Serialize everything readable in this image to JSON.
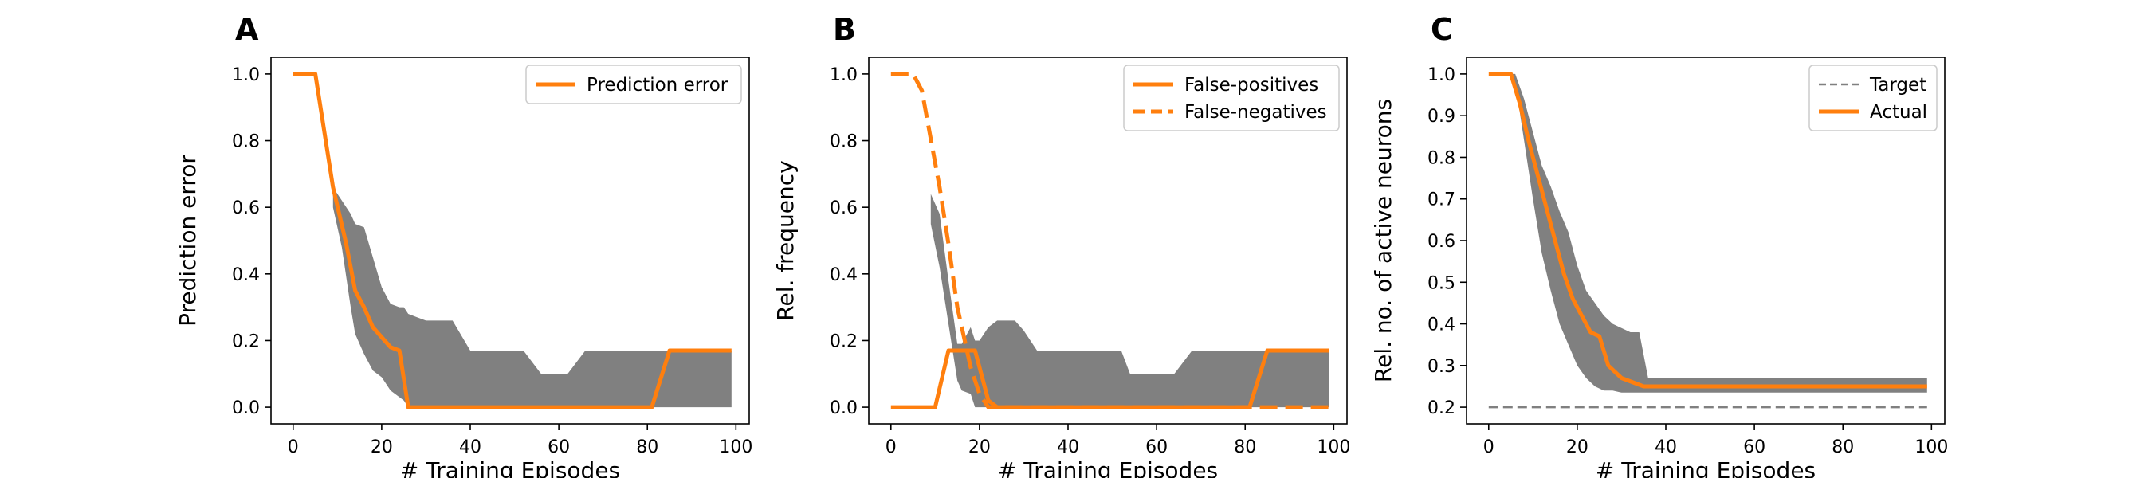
{
  "colors": {
    "line": "#ff7f0e",
    "band": "#808080",
    "target": "#808080",
    "axis": "#000000"
  },
  "chart_data": [
    {
      "panel": "A",
      "type": "line",
      "xlabel": "# Training Episodes",
      "ylabel": "Prediction error",
      "xlim": [
        -5,
        103
      ],
      "ylim": [
        -0.05,
        1.05
      ],
      "xticks": [
        0,
        20,
        40,
        60,
        80,
        100
      ],
      "xtick_labels": [
        "0",
        "20",
        "40",
        "60",
        "80",
        "100"
      ],
      "yticks": [
        0.0,
        0.2,
        0.4,
        0.6,
        0.8,
        1.0
      ],
      "ytick_labels": [
        "0.0",
        "0.2",
        "0.4",
        "0.6",
        "0.8",
        "1.0"
      ],
      "legend_position": "top-right",
      "band": {
        "x": [
          9,
          11,
          13,
          14,
          16,
          18,
          20,
          22,
          24,
          25,
          26,
          28,
          30,
          32,
          34,
          36,
          40,
          44,
          48,
          52,
          56,
          60,
          62,
          66,
          70,
          80,
          84,
          90,
          99
        ],
        "upper": [
          0.66,
          0.62,
          0.58,
          0.55,
          0.54,
          0.45,
          0.36,
          0.31,
          0.3,
          0.3,
          0.28,
          0.27,
          0.26,
          0.26,
          0.26,
          0.26,
          0.17,
          0.17,
          0.17,
          0.17,
          0.1,
          0.1,
          0.1,
          0.17,
          0.17,
          0.17,
          0.17,
          0.17,
          0.17
        ],
        "lower": [
          0.6,
          0.48,
          0.3,
          0.22,
          0.16,
          0.11,
          0.09,
          0.05,
          0.03,
          0.02,
          0.0,
          0.0,
          0.0,
          0.0,
          0.0,
          0.0,
          0.0,
          0.0,
          0.0,
          0.0,
          0.0,
          0.0,
          0.0,
          0.0,
          0.0,
          0.0,
          0.0,
          0.0,
          0.0
        ]
      },
      "series": [
        {
          "name": "Prediction error",
          "style": "solid",
          "x": [
            0,
            5,
            9,
            12,
            14,
            16,
            18,
            20,
            22,
            24,
            26,
            30,
            40,
            60,
            81,
            85,
            99
          ],
          "y": [
            1.0,
            1.0,
            0.66,
            0.49,
            0.35,
            0.3,
            0.24,
            0.21,
            0.18,
            0.17,
            0.0,
            0.0,
            0.0,
            0.0,
            0.0,
            0.17,
            0.17
          ]
        }
      ]
    },
    {
      "panel": "B",
      "type": "line",
      "xlabel": "# Training Episodes",
      "ylabel": "Rel. frequency",
      "xlim": [
        -5,
        103
      ],
      "ylim": [
        -0.05,
        1.05
      ],
      "xticks": [
        0,
        20,
        40,
        60,
        80,
        100
      ],
      "xtick_labels": [
        "0",
        "20",
        "40",
        "60",
        "80",
        "100"
      ],
      "yticks": [
        0.0,
        0.2,
        0.4,
        0.6,
        0.8,
        1.0
      ],
      "ytick_labels": [
        "0.0",
        "0.2",
        "0.4",
        "0.6",
        "0.8",
        "1.0"
      ],
      "legend_position": "top-right",
      "band": {
        "x": [
          9,
          11,
          13,
          15,
          16,
          18,
          19,
          20,
          22,
          24,
          26,
          28,
          30,
          33,
          36,
          40,
          44,
          48,
          52,
          54,
          60,
          64,
          68,
          74,
          80,
          99
        ],
        "upper": [
          0.64,
          0.58,
          0.38,
          0.19,
          0.19,
          0.24,
          0.2,
          0.2,
          0.24,
          0.26,
          0.26,
          0.26,
          0.23,
          0.17,
          0.17,
          0.17,
          0.17,
          0.17,
          0.17,
          0.1,
          0.1,
          0.1,
          0.17,
          0.17,
          0.17,
          0.17
        ],
        "lower": [
          0.55,
          0.42,
          0.25,
          0.08,
          0.05,
          0.04,
          0.0,
          0.0,
          0.0,
          0.0,
          0.0,
          0.0,
          0.0,
          0.0,
          0.0,
          0.0,
          0.0,
          0.0,
          0.0,
          0.0,
          0.0,
          0.0,
          0.0,
          0.0,
          0.0,
          0.0
        ]
      },
      "series": [
        {
          "name": "False-positives",
          "style": "solid",
          "x": [
            0,
            10,
            13,
            19,
            22,
            24,
            40,
            60,
            81,
            85,
            99
          ],
          "y": [
            0.0,
            0.0,
            0.17,
            0.17,
            0.02,
            0.0,
            0.0,
            0.0,
            0.0,
            0.17,
            0.17
          ]
        },
        {
          "name": "False-negatives",
          "style": "dashed",
          "x": [
            0,
            5,
            7,
            11,
            13,
            15,
            18,
            20,
            22,
            24,
            40,
            60,
            81,
            85,
            99
          ],
          "y": [
            1.0,
            1.0,
            0.95,
            0.66,
            0.49,
            0.3,
            0.12,
            0.04,
            0.0,
            0.0,
            0.0,
            0.0,
            0.0,
            0.0,
            0.0
          ]
        }
      ]
    },
    {
      "panel": "C",
      "type": "line",
      "xlabel": "# Training Episodes",
      "ylabel": "Rel. no. of active neurons",
      "xlim": [
        -5,
        103
      ],
      "ylim": [
        0.16,
        1.04
      ],
      "xticks": [
        0,
        20,
        40,
        60,
        80,
        100
      ],
      "xtick_labels": [
        "0",
        "20",
        "40",
        "60",
        "80",
        "100"
      ],
      "yticks": [
        0.2,
        0.3,
        0.4,
        0.5,
        0.6,
        0.7,
        0.8,
        0.9,
        1.0
      ],
      "ytick_labels": [
        "0.2",
        "0.3",
        "0.4",
        "0.5",
        "0.6",
        "0.7",
        "0.8",
        "0.9",
        "1.0"
      ],
      "legend_position": "top-right",
      "band": {
        "x": [
          5,
          6,
          8,
          10,
          12,
          14,
          16,
          18,
          20,
          22,
          24,
          26,
          28,
          30,
          32,
          34,
          36,
          40,
          60,
          99
        ],
        "upper": [
          1.0,
          1.0,
          0.94,
          0.86,
          0.78,
          0.73,
          0.67,
          0.62,
          0.54,
          0.48,
          0.45,
          0.42,
          0.4,
          0.39,
          0.38,
          0.38,
          0.27,
          0.27,
          0.27,
          0.27
        ],
        "lower": [
          1.0,
          0.98,
          0.84,
          0.7,
          0.57,
          0.48,
          0.4,
          0.35,
          0.3,
          0.27,
          0.25,
          0.24,
          0.24,
          0.235,
          0.235,
          0.235,
          0.235,
          0.235,
          0.235,
          0.235
        ]
      },
      "series": [
        {
          "name": "Target",
          "style": "dashed-thin",
          "x": [
            0,
            99
          ],
          "y": [
            0.2,
            0.2
          ]
        },
        {
          "name": "Actual",
          "style": "solid",
          "x": [
            0,
            5,
            7,
            9,
            11,
            13,
            15,
            17,
            19,
            21,
            23,
            25,
            27,
            30,
            35,
            40,
            60,
            99
          ],
          "y": [
            1.0,
            1.0,
            0.93,
            0.84,
            0.76,
            0.68,
            0.6,
            0.52,
            0.46,
            0.42,
            0.38,
            0.37,
            0.3,
            0.27,
            0.25,
            0.25,
            0.25,
            0.25
          ]
        }
      ]
    }
  ]
}
